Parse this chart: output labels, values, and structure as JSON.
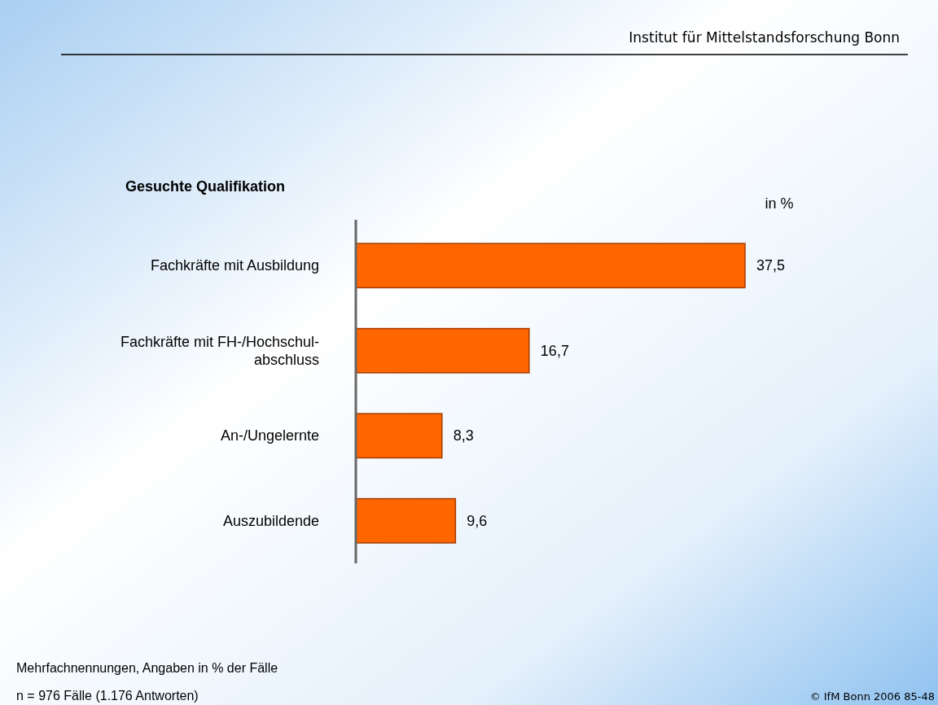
{
  "chart_data": {
    "type": "bar",
    "orientation": "horizontal",
    "title": "Gesuchte Qualifikation",
    "xlabel": "in %",
    "categories": [
      "Fachkräfte mit Ausbildung",
      "Fachkräfte mit FH-/Hochschul-\nabschluss",
      "An-/Ungelernte",
      "Auszubildende"
    ],
    "values": [
      37.5,
      16.7,
      8.3,
      9.6
    ],
    "value_labels": [
      "37,5",
      "16,7",
      "8,3",
      "9,6"
    ],
    "color": "#ff6600",
    "annotations": [
      "Institut für Mittelstandsforschung Bonn",
      "Mehrfachnennungen, Angaben in % der Fälle",
      "n = 976 Fälle (1.176 Antworten)",
      "© IfM Bonn 2006  85-48"
    ]
  }
}
